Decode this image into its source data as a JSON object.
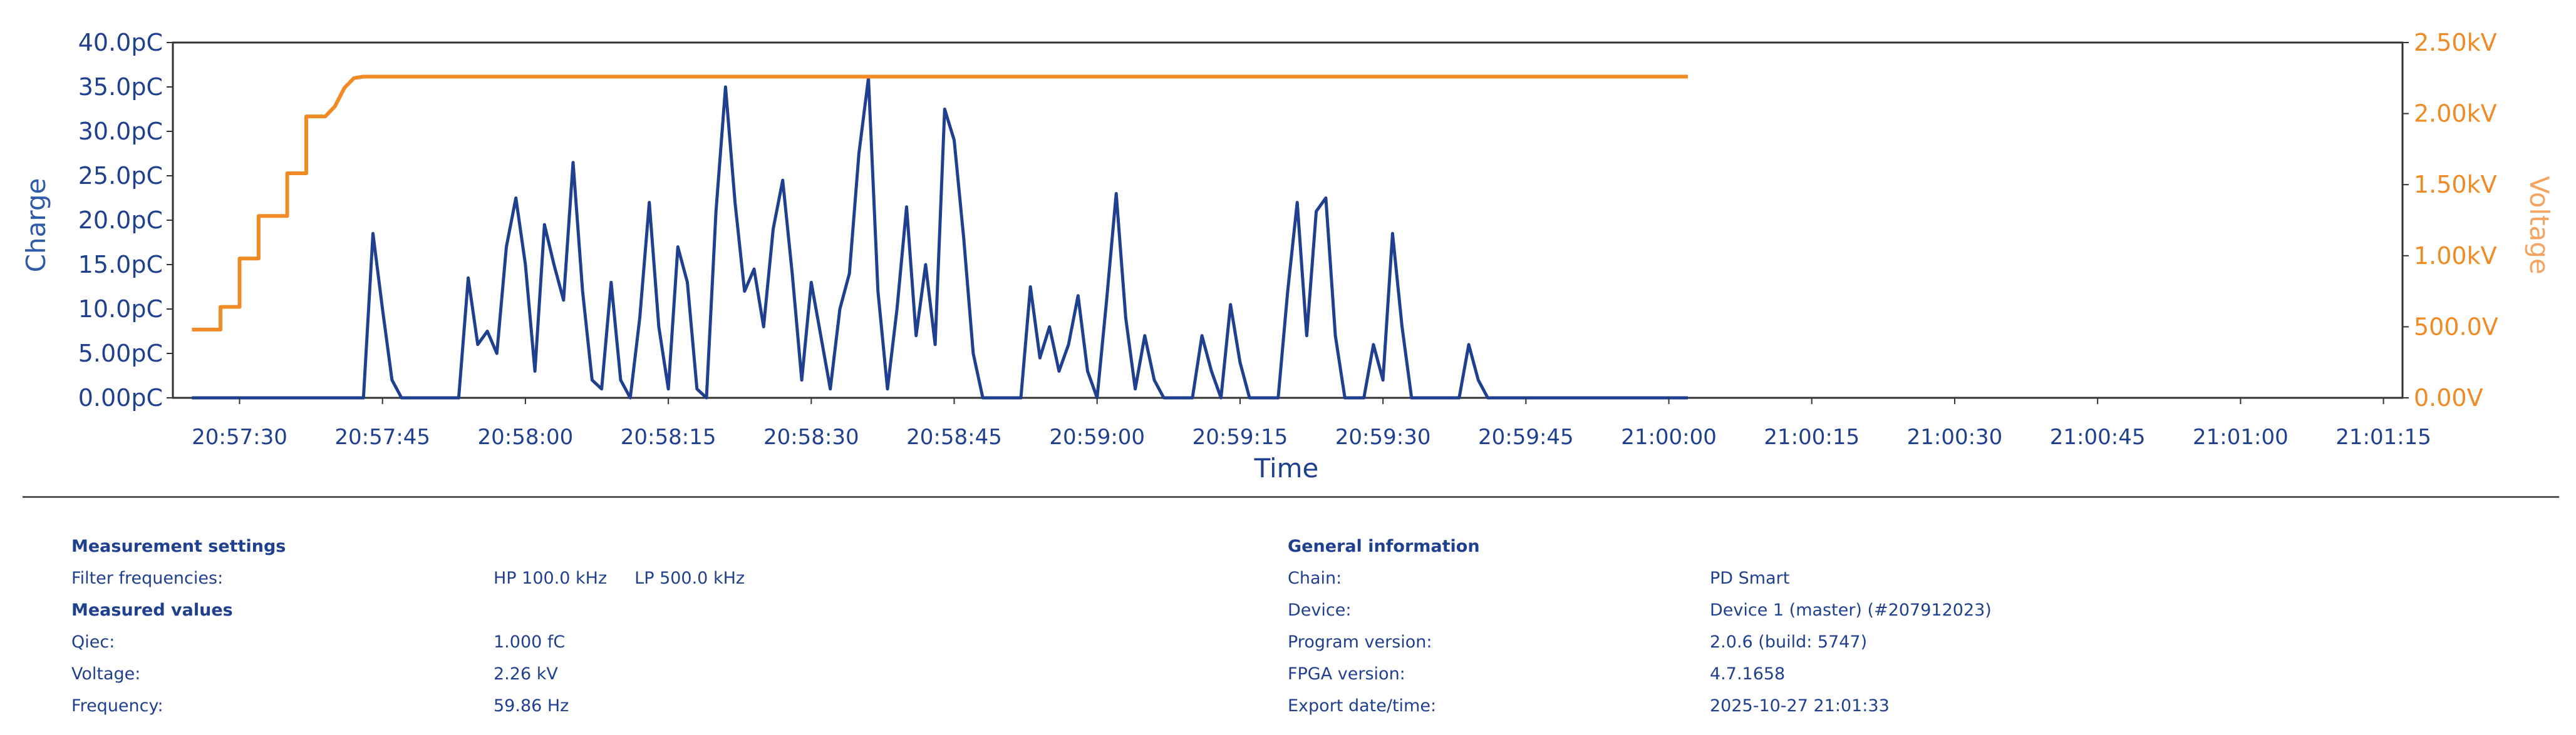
{
  "chart_data": {
    "type": "line",
    "xlabel": "Time",
    "ylabel_left": "Charge",
    "ylabel_right": "Voltage",
    "grid": true,
    "x_range": [
      "20:57:23",
      "21:01:17"
    ],
    "x_ticks": [
      "20:57:30",
      "20:57:45",
      "20:58:00",
      "20:58:15",
      "20:58:30",
      "20:58:45",
      "20:59:00",
      "20:59:15",
      "20:59:30",
      "20:59:45",
      "21:00:00",
      "21:00:15",
      "21:00:30",
      "21:00:45",
      "21:01:00",
      "21:01:15"
    ],
    "ylim_left": [
      0,
      40
    ],
    "ylim_right": [
      0,
      2.5
    ],
    "y_ticks_left": [
      "0.00pC",
      "5.00pC",
      "10.0pC",
      "15.0pC",
      "20.0pC",
      "25.0pC",
      "30.0pC",
      "35.0pC",
      "40.0pC"
    ],
    "y_ticks_right": [
      "0.00V",
      "500.0V",
      "1.00kV",
      "1.50kV",
      "2.00kV",
      "2.50kV"
    ],
    "series": [
      {
        "name": "Charge",
        "axis": "left",
        "unit": "pC",
        "color": "#1f3f8f",
        "points": [
          [
            "20:57:25",
            0
          ],
          [
            "20:57:43",
            0
          ],
          [
            "20:57:44",
            18.5
          ],
          [
            "20:57:45",
            10
          ],
          [
            "20:57:46",
            2
          ],
          [
            "20:57:47",
            0
          ],
          [
            "20:57:53",
            0
          ],
          [
            "20:57:54",
            13.5
          ],
          [
            "20:57:55",
            6
          ],
          [
            "20:57:56",
            7.5
          ],
          [
            "20:57:57",
            5
          ],
          [
            "20:57:58",
            17
          ],
          [
            "20:57:59",
            22.5
          ],
          [
            "20:58:00",
            15
          ],
          [
            "20:58:01",
            3
          ],
          [
            "20:58:02",
            19.5
          ],
          [
            "20:58:03",
            15
          ],
          [
            "20:58:04",
            11
          ],
          [
            "20:58:05",
            26.5
          ],
          [
            "20:58:06",
            12
          ],
          [
            "20:58:07",
            2
          ],
          [
            "20:58:08",
            1
          ],
          [
            "20:58:09",
            13
          ],
          [
            "20:58:10",
            2
          ],
          [
            "20:58:11",
            0
          ],
          [
            "20:58:12",
            9
          ],
          [
            "20:58:13",
            22
          ],
          [
            "20:58:14",
            8
          ],
          [
            "20:58:15",
            1
          ],
          [
            "20:58:16",
            17
          ],
          [
            "20:58:17",
            13
          ],
          [
            "20:58:18",
            1
          ],
          [
            "20:58:19",
            0
          ],
          [
            "20:58:20",
            21
          ],
          [
            "20:58:21",
            35
          ],
          [
            "20:58:22",
            22
          ],
          [
            "20:58:23",
            12
          ],
          [
            "20:58:24",
            14.5
          ],
          [
            "20:58:25",
            8
          ],
          [
            "20:58:26",
            19
          ],
          [
            "20:58:27",
            24.5
          ],
          [
            "20:58:28",
            14
          ],
          [
            "20:58:29",
            2
          ],
          [
            "20:58:30",
            13
          ],
          [
            "20:58:31",
            7
          ],
          [
            "20:58:32",
            1
          ],
          [
            "20:58:33",
            10
          ],
          [
            "20:58:34",
            14
          ],
          [
            "20:58:35",
            27.5
          ],
          [
            "20:58:36",
            36
          ],
          [
            "20:58:37",
            12
          ],
          [
            "20:58:38",
            1
          ],
          [
            "20:58:39",
            10
          ],
          [
            "20:58:40",
            21.5
          ],
          [
            "20:58:41",
            7
          ],
          [
            "20:58:42",
            15
          ],
          [
            "20:58:43",
            6
          ],
          [
            "20:58:44",
            32.5
          ],
          [
            "20:58:45",
            29
          ],
          [
            "20:58:46",
            18
          ],
          [
            "20:58:47",
            5
          ],
          [
            "20:58:48",
            0
          ],
          [
            "20:58:52",
            0
          ],
          [
            "20:58:53",
            12.5
          ],
          [
            "20:58:54",
            4.5
          ],
          [
            "20:58:55",
            8
          ],
          [
            "20:58:56",
            3
          ],
          [
            "20:58:57",
            6
          ],
          [
            "20:58:58",
            11.5
          ],
          [
            "20:58:59",
            3
          ],
          [
            "20:59:00",
            0
          ],
          [
            "20:59:01",
            11
          ],
          [
            "20:59:02",
            23
          ],
          [
            "20:59:03",
            9
          ],
          [
            "20:59:04",
            1
          ],
          [
            "20:59:05",
            7
          ],
          [
            "20:59:06",
            2
          ],
          [
            "20:59:07",
            0
          ],
          [
            "20:59:10",
            0
          ],
          [
            "20:59:11",
            7
          ],
          [
            "20:59:12",
            3
          ],
          [
            "20:59:13",
            0
          ],
          [
            "20:59:14",
            10.5
          ],
          [
            "20:59:15",
            4
          ],
          [
            "20:59:16",
            0
          ],
          [
            "20:59:19",
            0
          ],
          [
            "20:59:20",
            12
          ],
          [
            "20:59:21",
            22
          ],
          [
            "20:59:22",
            7
          ],
          [
            "20:59:23",
            21
          ],
          [
            "20:59:24",
            22.5
          ],
          [
            "20:59:25",
            7
          ],
          [
            "20:59:26",
            0
          ],
          [
            "20:59:28",
            0
          ],
          [
            "20:59:29",
            6
          ],
          [
            "20:59:30",
            2
          ],
          [
            "20:59:31",
            18.5
          ],
          [
            "20:59:32",
            8
          ],
          [
            "20:59:33",
            0
          ],
          [
            "20:59:38",
            0
          ],
          [
            "20:59:39",
            6
          ],
          [
            "20:59:40",
            2
          ],
          [
            "20:59:41",
            0
          ],
          [
            "21:00:02",
            0
          ]
        ]
      },
      {
        "name": "Voltage",
        "axis": "right",
        "unit": "kV",
        "color": "#f08a24",
        "points": [
          [
            "20:57:25",
            0.48
          ],
          [
            "20:57:28",
            0.48
          ],
          [
            "20:57:28",
            0.64
          ],
          [
            "20:57:30",
            0.64
          ],
          [
            "20:57:30",
            0.98
          ],
          [
            "20:57:32",
            0.98
          ],
          [
            "20:57:32",
            1.28
          ],
          [
            "20:57:35",
            1.28
          ],
          [
            "20:57:35",
            1.58
          ],
          [
            "20:57:37",
            1.58
          ],
          [
            "20:57:37",
            1.98
          ],
          [
            "20:57:39",
            1.98
          ],
          [
            "20:57:40",
            2.05
          ],
          [
            "20:57:41",
            2.18
          ],
          [
            "20:57:42",
            2.25
          ],
          [
            "20:57:43",
            2.26
          ],
          [
            "21:00:02",
            2.26
          ]
        ]
      }
    ]
  },
  "info": {
    "settings_heading": "Measurement settings",
    "filter_label": "Filter frequencies:",
    "filter_hp": "HP 100.0 kHz",
    "filter_lp": "LP 500.0 kHz",
    "measured_heading": "Measured values",
    "qiec_label": "Qiec:",
    "qiec_value": "1.000 fC",
    "voltage_label": "Voltage:",
    "voltage_value": "2.26 kV",
    "frequency_label": "Frequency:",
    "frequency_value": "59.86 Hz",
    "general_heading": "General information",
    "chain_label": "Chain:",
    "chain_value": "PD Smart",
    "device_label": "Device:",
    "device_value": "Device 1 (master) (#207912023)",
    "program_label": "Program version:",
    "program_value": "2.0.6 (build: 5747)",
    "fpga_label": "FPGA version:",
    "fpga_value": "4.7.1658",
    "export_label": "Export date/time:",
    "export_value": "2025-10-27 21:01:33"
  }
}
